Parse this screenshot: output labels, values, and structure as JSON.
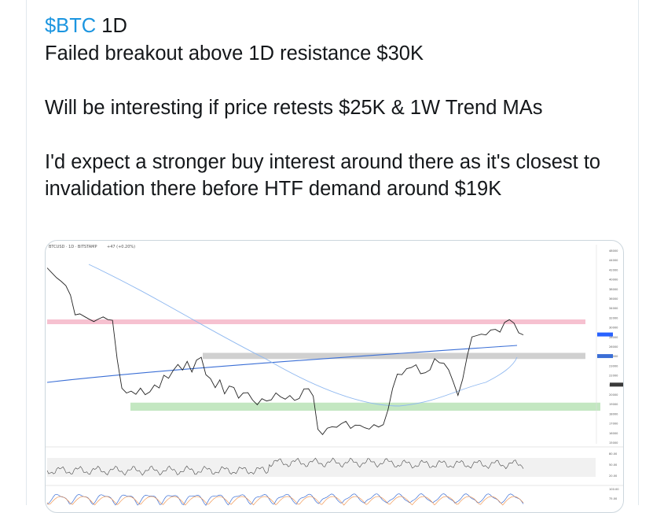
{
  "tweet": {
    "cashtag": "$BTC",
    "line1_rest": " 1D",
    "line2": "Failed breakout above 1D resistance $30K",
    "paragraph2": "Will be interesting if price retests $25K & 1W Trend MAs",
    "paragraph3": "I'd expect a stronger buy interest around there as it's closest to invalidation there before HTF demand around $19K"
  },
  "chart": {
    "header": "BTCUSD · 1D · BITSTAMP",
    "header_change": "+47 (+0.20%)",
    "colors": {
      "resistance_zone": "#f4b6c8",
      "retest_zone": "#c8c8c8",
      "demand_zone": "#b9e3b6",
      "price_line": "#222222",
      "trend_ma": "#3b6fd6",
      "slow_ma": "#8fb8f0",
      "price_tag": "#2962ff"
    },
    "price_axis_ticks": [
      "48000",
      "44000",
      "42000",
      "40000",
      "38000",
      "36000",
      "34000",
      "32000",
      "30000",
      "28000",
      "26000",
      "24000",
      "23000",
      "22000",
      "21000",
      "20000",
      "19000",
      "18000",
      "17000",
      "16000",
      "15000"
    ],
    "rsi_axis_ticks": [
      "80.00",
      "50.00",
      "20.00"
    ],
    "stoch_axis_ticks": [
      "100.00",
      "75.00"
    ]
  },
  "chart_data": {
    "type": "line",
    "title": "",
    "price_close": [
      46200,
      45100,
      44000,
      43300,
      40800,
      38200,
      32400,
      31600,
      31200,
      30800,
      30500,
      30200,
      31300,
      30900,
      29800,
      24500,
      21200,
      20800,
      20600,
      20400,
      21300,
      20100,
      20600,
      21600,
      21400,
      22500,
      22300,
      23400,
      23700,
      23200,
      24400,
      23300,
      24300,
      24800,
      22900,
      22000,
      21100,
      22200,
      20700,
      21200,
      21200,
      20100,
      20300,
      20500,
      19800,
      19400,
      19700,
      19600,
      19900,
      20300,
      20000,
      19900,
      20500,
      19500,
      19900,
      21200,
      20800,
      20100,
      16600,
      16200,
      16500,
      16800,
      16900,
      16900,
      17300,
      16700,
      17200,
      16800,
      16700,
      16700,
      16800,
      16700,
      17100,
      18800,
      20900,
      22800,
      22900,
      23200,
      23500,
      24000,
      23100,
      22800,
      23300,
      24800,
      23900,
      24000,
      23400,
      22100,
      20100,
      22200,
      25200,
      27400,
      27800,
      28200,
      28300,
      28500,
      28800,
      28600,
      29500,
      30200,
      29800,
      28600,
      27800
    ],
    "zones": [
      {
        "name": "1D resistance",
        "low": 29900,
        "high": 30500
      },
      {
        "name": "retest",
        "low": 24600,
        "high": 25400
      },
      {
        "name": "HTF demand",
        "low": 18500,
        "high": 19400
      }
    ]
  }
}
